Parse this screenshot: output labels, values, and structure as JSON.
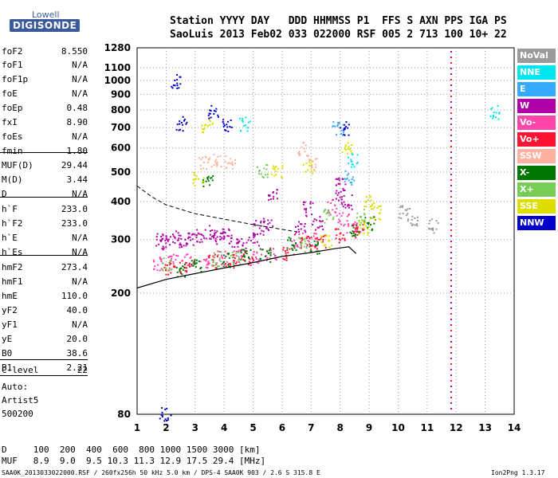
{
  "logo": {
    "top": "Lowell",
    "bottom": "DIGISONDE"
  },
  "header": {
    "line1": "Station YYYY DAY   DDD HHMMSS P1  FFS S AXN PPS IGA PS",
    "line2": "SaoLuis 2013 Feb02 033 022000 RSF 005 2 713 100 10+ 22"
  },
  "params": [
    {
      "label": "foF2",
      "value": "8.550"
    },
    {
      "label": "foF1",
      "value": "N/A"
    },
    {
      "label": "foF1p",
      "value": "N/A"
    },
    {
      "label": "foE",
      "value": "N/A"
    },
    {
      "label": "foEp",
      "value": "0.48"
    },
    {
      "label": "fxI",
      "value": "8.90"
    },
    {
      "label": "foEs",
      "value": "N/A"
    },
    {
      "label": "fmin",
      "value": "1.80"
    },
    {
      "label": "MUF(D)",
      "value": "29.44"
    },
    {
      "label": "M(D)",
      "value": "3.44"
    },
    {
      "label": "D",
      "value": "N/A"
    },
    {
      "label": "h`F",
      "value": "233.0"
    },
    {
      "label": "h`F2",
      "value": "233.0"
    },
    {
      "label": "h`E",
      "value": "N/A"
    },
    {
      "label": "h`Es",
      "value": "N/A"
    },
    {
      "label": "hmF2",
      "value": "273.4"
    },
    {
      "label": "hmF1",
      "value": "N/A"
    },
    {
      "label": "hmE",
      "value": "110.0"
    },
    {
      "label": "yF2",
      "value": "40.0"
    },
    {
      "label": "yF1",
      "value": "N/A"
    },
    {
      "label": "yE",
      "value": "20.0"
    },
    {
      "label": "B0",
      "value": "38.6"
    },
    {
      "label": "B1",
      "value": "2.21"
    },
    {
      "label": "C-level",
      "value": "22"
    }
  ],
  "artist": [
    "Auto:",
    "Artist5",
    "500200"
  ],
  "legend": [
    {
      "label": "NoVal",
      "color": "#9a9a9a"
    },
    {
      "label": "NNE",
      "color": "#00e5ee"
    },
    {
      "label": "E",
      "color": "#33aaff"
    },
    {
      "label": "W",
      "color": "#b000a8"
    },
    {
      "label": "Vo-",
      "color": "#ff44aa"
    },
    {
      "label": "Vo+",
      "color": "#ff1133"
    },
    {
      "label": "SSW",
      "color": "#ffb0a0"
    },
    {
      "label": "X-",
      "color": "#007700"
    },
    {
      "label": "X+",
      "color": "#77cc55"
    },
    {
      "label": "SSE",
      "color": "#dddd00"
    },
    {
      "label": "NNW",
      "color": "#0000cc"
    }
  ],
  "bottom": {
    "d_line": "D     100  200  400  600  800 1000 1500 3000 [km]",
    "muf_line": "MUF   8.9  9.0  9.5 10.3 11.3 12.9 17.5 29.4 [MHz]"
  },
  "footer": {
    "left": "SAA0K_2013033022000.RSF / 260fx256h 50 kHz 5.0 km / DPS-4 SAA0K 903 / 2.6 S 315.8 E",
    "right": "Ion2Png 1.3.17"
  },
  "chart_data": {
    "type": "scatter",
    "title": "",
    "xlabel": "",
    "ylabel": "",
    "xlim": [
      1,
      14
    ],
    "ylim": [
      80,
      1280
    ],
    "yscale": "log",
    "x_ticks": [
      "1",
      "2",
      "3",
      "4",
      "5",
      "6",
      "7",
      "8",
      "9",
      "10",
      "11",
      "12",
      "13",
      "14"
    ],
    "y_ticks": [
      "80",
      "200",
      "300",
      "400",
      "500",
      "600",
      "700",
      "800",
      "900",
      "1000",
      "1100",
      "1280"
    ],
    "profile_curve": {
      "x": [
        1.0,
        2.0,
        3.0,
        4.0,
        5.0,
        6.0,
        7.0,
        7.8,
        8.3,
        8.55
      ],
      "y": [
        208,
        222,
        232,
        242,
        252,
        264,
        272,
        280,
        284,
        270
      ]
    },
    "dashed_curve": {
      "x": [
        1.0,
        1.5,
        2.0,
        3.0,
        4.0,
        5.0,
        6.0,
        6.5
      ],
      "y": [
        450,
        415,
        390,
        365,
        350,
        336,
        324,
        318
      ]
    },
    "echo_clusters": [
      {
        "series": "W",
        "points": [
          [
            1.8,
            300
          ],
          [
            2.0,
            295
          ],
          [
            2.3,
            305
          ],
          [
            2.6,
            300
          ],
          [
            2.9,
            300
          ],
          [
            3.2,
            310
          ],
          [
            3.5,
            320
          ],
          [
            3.8,
            305
          ],
          [
            4.0,
            310
          ],
          [
            4.3,
            300
          ],
          [
            4.6,
            290
          ],
          [
            5.0,
            300
          ],
          [
            5.2,
            330
          ],
          [
            5.5,
            340
          ],
          [
            5.7,
            420
          ],
          [
            6.6,
            330
          ],
          [
            6.9,
            380
          ],
          [
            7.2,
            340
          ],
          [
            7.9,
            420
          ],
          [
            8.0,
            460
          ],
          [
            8.2,
            400
          ]
        ]
      },
      {
        "series": "Vo-",
        "points": [
          [
            1.7,
            250
          ],
          [
            2.2,
            255
          ],
          [
            2.8,
            260
          ],
          [
            3.3,
            250
          ],
          [
            3.9,
            262
          ],
          [
            4.5,
            268
          ],
          [
            5.1,
            265
          ],
          [
            5.6,
            270
          ],
          [
            6.5,
            300
          ],
          [
            7.0,
            300
          ],
          [
            7.7,
            380
          ],
          [
            8.1,
            350
          ],
          [
            8.4,
            330
          ]
        ]
      },
      {
        "series": "Vo+",
        "points": [
          [
            2.1,
            240
          ],
          [
            2.6,
            245
          ],
          [
            3.6,
            255
          ],
          [
            4.2,
            255
          ],
          [
            4.8,
            262
          ],
          [
            6.2,
            270
          ],
          [
            6.8,
            295
          ],
          [
            7.3,
            295
          ],
          [
            8.0,
            310
          ],
          [
            8.6,
            320
          ]
        ]
      },
      {
        "series": "X-",
        "points": [
          [
            2.5,
            240
          ],
          [
            3.0,
            248
          ],
          [
            3.4,
            470
          ],
          [
            4.1,
            258
          ],
          [
            4.7,
            265
          ],
          [
            5.4,
            268
          ],
          [
            6.3,
            290
          ],
          [
            7.1,
            285
          ],
          [
            8.5,
            320
          ],
          [
            9.0,
            340
          ]
        ]
      },
      {
        "series": "X+",
        "points": [
          [
            2.0,
            250
          ],
          [
            3.7,
            260
          ],
          [
            4.4,
            262
          ],
          [
            5.3,
            505
          ],
          [
            6.7,
            290
          ],
          [
            7.6,
            360
          ],
          [
            8.7,
            360
          ]
        ]
      },
      {
        "series": "SSE",
        "points": [
          [
            3.1,
            475
          ],
          [
            3.4,
            710
          ],
          [
            5.8,
            500
          ],
          [
            6.9,
            520
          ],
          [
            7.5,
            300
          ],
          [
            8.2,
            600
          ],
          [
            8.8,
            330
          ],
          [
            9.2,
            370
          ],
          [
            9.0,
            400
          ]
        ]
      },
      {
        "series": "NNW",
        "points": [
          [
            1.95,
            80
          ],
          [
            2.35,
            1000
          ],
          [
            2.5,
            725
          ],
          [
            3.6,
            790
          ],
          [
            4.1,
            720
          ],
          [
            8.1,
            700
          ]
        ]
      },
      {
        "series": "NNE",
        "points": [
          [
            4.7,
            720
          ],
          [
            8.4,
            550
          ],
          [
            13.3,
            790
          ]
        ]
      },
      {
        "series": "SSW",
        "points": [
          [
            3.3,
            540
          ],
          [
            3.7,
            548
          ],
          [
            4.2,
            540
          ],
          [
            6.7,
            600
          ],
          [
            7.0,
            540
          ]
        ]
      },
      {
        "series": "E",
        "points": [
          [
            7.9,
            700
          ],
          [
            8.3,
            480
          ]
        ]
      },
      {
        "series": "NoVal",
        "points": [
          [
            10.2,
            370
          ],
          [
            10.5,
            350
          ],
          [
            11.2,
            335
          ]
        ]
      }
    ],
    "vertical_trace_x": 11.8
  }
}
